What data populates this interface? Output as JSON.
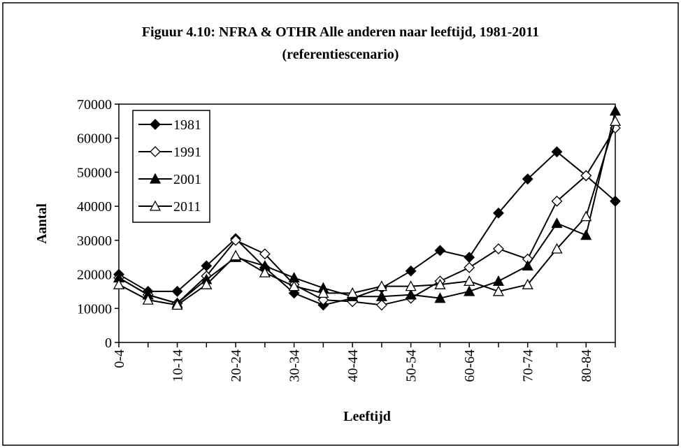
{
  "chart_data": {
    "type": "line",
    "title": "Figuur 4.10: NFRA & OTHR Alle anderen naar leeftijd, 1981-2011",
    "subtitle": "(referentiescenario)",
    "x_label": "Leeftijd",
    "y_label": "Aantal",
    "categories": [
      "0-4",
      null,
      "10-14",
      null,
      "20-24",
      null,
      "30-34",
      null,
      "40-44",
      null,
      "50-54",
      null,
      "60-64",
      null,
      "70-74",
      null,
      "80-84",
      null
    ],
    "series": [
      {
        "name": "1981",
        "color": "#000000",
        "marker": "diamond-filled",
        "values": [
          20000,
          15000,
          15000,
          22500,
          30500,
          22000,
          14500,
          11000,
          13000,
          16000,
          21000,
          27000,
          25000,
          38000,
          48000,
          56000,
          49000,
          41500
        ]
      },
      {
        "name": "1991",
        "color": "#000000",
        "marker": "diamond-open",
        "values": [
          19000,
          14000,
          11500,
          19500,
          30000,
          26000,
          17000,
          12500,
          12000,
          11000,
          13000,
          18000,
          22000,
          27500,
          24500,
          41500,
          49000,
          63000
        ]
      },
      {
        "name": "2001",
        "color": "#000000",
        "marker": "triangle-filled",
        "values": [
          19000,
          14000,
          11500,
          18500,
          25000,
          22500,
          19000,
          16000,
          13500,
          13500,
          14000,
          13000,
          15000,
          18000,
          22500,
          35000,
          31500,
          68000
        ]
      },
      {
        "name": "2011",
        "color": "#000000",
        "marker": "triangle-open",
        "values": [
          17000,
          12500,
          11000,
          17000,
          25500,
          20500,
          16500,
          14500,
          14500,
          16500,
          16500,
          17000,
          18000,
          15000,
          17000,
          27500,
          37000,
          65000
        ]
      }
    ],
    "ylim": [
      0,
      70000
    ],
    "yticks": [
      0,
      10000,
      20000,
      30000,
      40000,
      50000,
      60000,
      70000
    ],
    "legend": "top-left",
    "grid": false
  }
}
